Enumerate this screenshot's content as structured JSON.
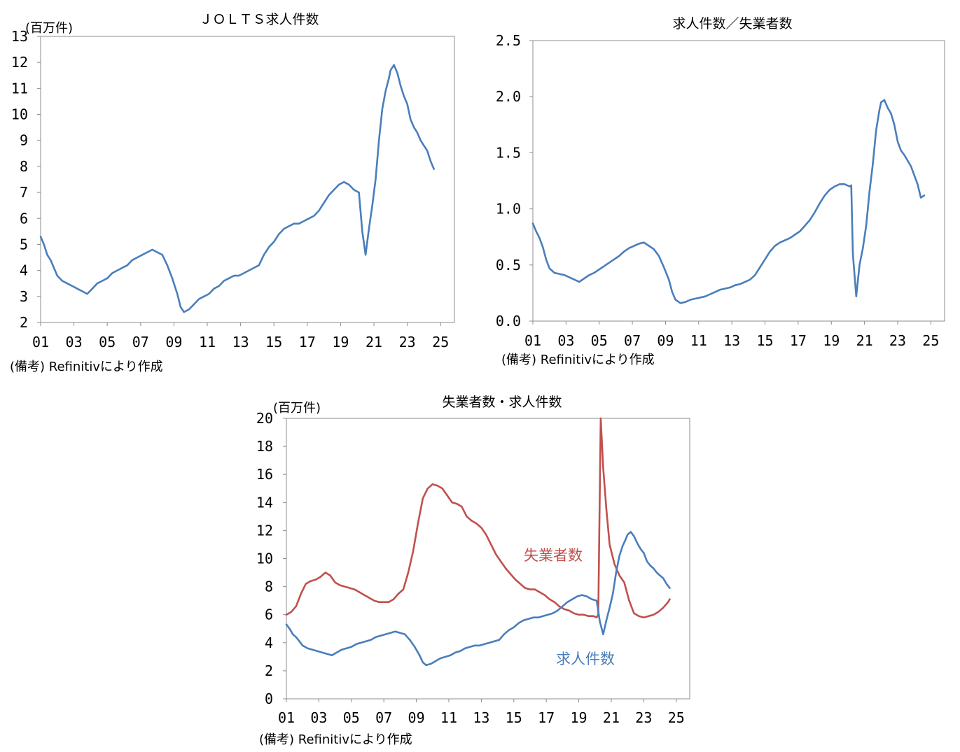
{
  "chart_data": [
    {
      "type": "line",
      "title": "ＪＯＬＴＳ求人件数",
      "unit_label": "(百万件)",
      "note": "(備考) Refinitivにより作成",
      "ylim": [
        2,
        13
      ],
      "y_ticks": [
        2,
        3,
        4,
        5,
        6,
        7,
        8,
        9,
        10,
        11,
        12,
        13
      ],
      "y_tick_labels": [
        "2",
        "3",
        "4",
        "5",
        "6",
        "7",
        "8",
        "9",
        "10",
        "11",
        "12",
        "13"
      ],
      "x_tick_labels": [
        "01",
        "03",
        "05",
        "07",
        "09",
        "11",
        "13",
        "15",
        "17",
        "19",
        "21",
        "23",
        "25"
      ],
      "xlim": [
        2001.0,
        2025.83
      ],
      "legend": "none",
      "grid": false,
      "series": [
        {
          "color": "#4a7ebb",
          "x": [
            2001.0,
            2001.2,
            2001.4,
            2001.6,
            2001.8,
            2002.0,
            2002.3,
            2002.6,
            2002.9,
            2003.2,
            2003.5,
            2003.8,
            2004.1,
            2004.4,
            2004.7,
            2005.0,
            2005.3,
            2005.6,
            2005.9,
            2006.2,
            2006.5,
            2006.8,
            2007.1,
            2007.4,
            2007.7,
            2008.0,
            2008.3,
            2008.6,
            2008.9,
            2009.2,
            2009.4,
            2009.6,
            2009.9,
            2010.2,
            2010.5,
            2010.8,
            2011.1,
            2011.4,
            2011.7,
            2012.0,
            2012.3,
            2012.6,
            2012.9,
            2013.2,
            2013.5,
            2013.8,
            2014.1,
            2014.4,
            2014.7,
            2015.0,
            2015.3,
            2015.6,
            2015.9,
            2016.2,
            2016.5,
            2016.8,
            2017.1,
            2017.4,
            2017.7,
            2018.0,
            2018.3,
            2018.6,
            2018.9,
            2019.2,
            2019.5,
            2019.8,
            2020.1,
            2020.3,
            2020.5,
            2020.7,
            2020.9,
            2021.1,
            2021.3,
            2021.5,
            2021.7,
            2021.9,
            2022.0,
            2022.2,
            2022.4,
            2022.6,
            2022.8,
            2023.0,
            2023.2,
            2023.4,
            2023.6,
            2023.8,
            2024.0,
            2024.2,
            2024.4,
            2024.6
          ],
          "y": [
            5.3,
            5.0,
            4.6,
            4.4,
            4.1,
            3.8,
            3.6,
            3.5,
            3.4,
            3.3,
            3.2,
            3.1,
            3.3,
            3.5,
            3.6,
            3.7,
            3.9,
            4.0,
            4.1,
            4.2,
            4.4,
            4.5,
            4.6,
            4.7,
            4.8,
            4.7,
            4.6,
            4.2,
            3.7,
            3.1,
            2.6,
            2.4,
            2.5,
            2.7,
            2.9,
            3.0,
            3.1,
            3.3,
            3.4,
            3.6,
            3.7,
            3.8,
            3.8,
            3.9,
            4.0,
            4.1,
            4.2,
            4.6,
            4.9,
            5.1,
            5.4,
            5.6,
            5.7,
            5.8,
            5.8,
            5.9,
            6.0,
            6.1,
            6.3,
            6.6,
            6.9,
            7.1,
            7.3,
            7.4,
            7.3,
            7.1,
            7.0,
            5.5,
            4.6,
            5.6,
            6.5,
            7.5,
            9.0,
            10.2,
            10.9,
            11.4,
            11.7,
            11.9,
            11.6,
            11.1,
            10.7,
            10.4,
            9.8,
            9.5,
            9.3,
            9.0,
            8.8,
            8.6,
            8.2,
            7.9
          ]
        }
      ]
    },
    {
      "type": "line",
      "title": "求人件数／失業者数",
      "note": "(備考) Refinitivにより作成",
      "ylim": [
        0.0,
        2.5
      ],
      "y_ticks": [
        0.0,
        0.5,
        1.0,
        1.5,
        2.0,
        2.5
      ],
      "y_tick_labels": [
        "0.0",
        "0.5",
        "1.0",
        "1.5",
        "2.0",
        "2.5"
      ],
      "x_tick_labels": [
        "01",
        "03",
        "05",
        "07",
        "09",
        "11",
        "13",
        "15",
        "17",
        "19",
        "21",
        "23",
        "25"
      ],
      "xlim": [
        2001.0,
        2025.83
      ],
      "legend": "none",
      "grid": false,
      "series": [
        {
          "color": "#4a7ebb",
          "x": [
            2001.0,
            2001.2,
            2001.4,
            2001.6,
            2001.8,
            2002.0,
            2002.3,
            2002.6,
            2002.9,
            2003.2,
            2003.5,
            2003.8,
            2004.1,
            2004.4,
            2004.7,
            2005.0,
            2005.3,
            2005.6,
            2005.9,
            2006.2,
            2006.5,
            2006.8,
            2007.1,
            2007.4,
            2007.7,
            2008.0,
            2008.3,
            2008.6,
            2008.9,
            2009.2,
            2009.4,
            2009.6,
            2009.9,
            2010.2,
            2010.5,
            2010.8,
            2011.1,
            2011.4,
            2011.7,
            2012.0,
            2012.3,
            2012.6,
            2012.9,
            2013.2,
            2013.5,
            2013.8,
            2014.1,
            2014.4,
            2014.7,
            2015.0,
            2015.3,
            2015.6,
            2015.9,
            2016.2,
            2016.5,
            2016.8,
            2017.1,
            2017.4,
            2017.7,
            2018.0,
            2018.3,
            2018.6,
            2018.9,
            2019.2,
            2019.5,
            2019.8,
            2020.1,
            2020.2,
            2020.3,
            2020.5,
            2020.7,
            2020.9,
            2021.1,
            2021.3,
            2021.5,
            2021.7,
            2021.9,
            2022.0,
            2022.2,
            2022.4,
            2022.6,
            2022.8,
            2023.0,
            2023.2,
            2023.4,
            2023.6,
            2023.8,
            2024.0,
            2024.2,
            2024.4,
            2024.6
          ],
          "y": [
            0.87,
            0.8,
            0.74,
            0.66,
            0.55,
            0.47,
            0.43,
            0.42,
            0.41,
            0.39,
            0.37,
            0.35,
            0.38,
            0.41,
            0.43,
            0.46,
            0.49,
            0.52,
            0.55,
            0.58,
            0.62,
            0.65,
            0.67,
            0.69,
            0.7,
            0.67,
            0.64,
            0.58,
            0.48,
            0.37,
            0.26,
            0.19,
            0.16,
            0.17,
            0.19,
            0.2,
            0.21,
            0.22,
            0.24,
            0.26,
            0.28,
            0.29,
            0.3,
            0.32,
            0.33,
            0.35,
            0.37,
            0.41,
            0.48,
            0.55,
            0.62,
            0.67,
            0.7,
            0.72,
            0.74,
            0.77,
            0.8,
            0.85,
            0.9,
            0.97,
            1.05,
            1.12,
            1.17,
            1.2,
            1.22,
            1.22,
            1.2,
            1.21,
            0.6,
            0.22,
            0.5,
            0.65,
            0.85,
            1.15,
            1.4,
            1.7,
            1.88,
            1.95,
            1.97,
            1.9,
            1.85,
            1.75,
            1.6,
            1.52,
            1.48,
            1.43,
            1.38,
            1.3,
            1.22,
            1.1,
            1.12
          ]
        }
      ]
    },
    {
      "type": "line",
      "title": "失業者数・求人件数",
      "unit_label": "(百万件)",
      "note": "(備考) Refinitivにより作成",
      "ylim": [
        0,
        20
      ],
      "y_ticks": [
        0,
        2,
        4,
        6,
        8,
        10,
        12,
        14,
        16,
        18,
        20
      ],
      "y_tick_labels": [
        "0",
        "2",
        "4",
        "6",
        "8",
        "10",
        "12",
        "14",
        "16",
        "18",
        "20"
      ],
      "x_tick_labels": [
        "01",
        "03",
        "05",
        "07",
        "09",
        "11",
        "13",
        "15",
        "17",
        "19",
        "21",
        "23",
        "25"
      ],
      "xlim": [
        2001.0,
        2025.83
      ],
      "legend": "inline labels",
      "grid": false,
      "series": [
        {
          "name": "失業者数",
          "color": "#c0504d",
          "x": [
            2001.0,
            2001.3,
            2001.6,
            2001.9,
            2002.2,
            2002.5,
            2002.8,
            2003.1,
            2003.4,
            2003.7,
            2004.0,
            2004.3,
            2004.6,
            2004.9,
            2005.2,
            2005.5,
            2005.8,
            2006.1,
            2006.4,
            2006.7,
            2007.0,
            2007.3,
            2007.6,
            2007.9,
            2008.2,
            2008.5,
            2008.8,
            2009.1,
            2009.4,
            2009.7,
            2010.0,
            2010.3,
            2010.6,
            2010.9,
            2011.2,
            2011.5,
            2011.8,
            2012.1,
            2012.4,
            2012.7,
            2013.0,
            2013.3,
            2013.6,
            2013.9,
            2014.2,
            2014.5,
            2014.8,
            2015.1,
            2015.4,
            2015.7,
            2016.0,
            2016.3,
            2016.6,
            2016.9,
            2017.2,
            2017.5,
            2017.8,
            2018.1,
            2018.4,
            2018.7,
            2019.0,
            2019.3,
            2019.6,
            2019.9,
            2020.1,
            2020.2,
            2020.35,
            2020.5,
            2020.7,
            2020.9,
            2021.2,
            2021.5,
            2021.8,
            2022.1,
            2022.4,
            2022.7,
            2023.0,
            2023.3,
            2023.6,
            2023.9,
            2024.2,
            2024.5,
            2024.6
          ],
          "y": [
            6.0,
            6.2,
            6.6,
            7.5,
            8.2,
            8.4,
            8.5,
            8.7,
            9.0,
            8.8,
            8.3,
            8.1,
            8.0,
            7.9,
            7.8,
            7.6,
            7.4,
            7.2,
            7.0,
            6.9,
            6.9,
            6.9,
            7.1,
            7.5,
            7.8,
            9.0,
            10.5,
            12.5,
            14.3,
            15.0,
            15.3,
            15.2,
            15.0,
            14.5,
            14.0,
            13.9,
            13.7,
            13.0,
            12.7,
            12.5,
            12.2,
            11.7,
            11.0,
            10.3,
            9.8,
            9.3,
            8.9,
            8.5,
            8.2,
            7.9,
            7.8,
            7.8,
            7.6,
            7.4,
            7.1,
            6.9,
            6.6,
            6.4,
            6.3,
            6.1,
            6.0,
            6.0,
            5.9,
            5.9,
            5.8,
            6.0,
            20.0,
            16.5,
            13.5,
            11.0,
            9.6,
            8.8,
            8.3,
            7.0,
            6.1,
            5.9,
            5.8,
            5.9,
            6.0,
            6.2,
            6.5,
            6.9,
            7.1
          ]
        },
        {
          "name": "求人件数",
          "color": "#4a7ebb",
          "x": [
            2001.0,
            2001.2,
            2001.4,
            2001.6,
            2001.8,
            2002.0,
            2002.3,
            2002.6,
            2002.9,
            2003.2,
            2003.5,
            2003.8,
            2004.1,
            2004.4,
            2004.7,
            2005.0,
            2005.3,
            2005.6,
            2005.9,
            2006.2,
            2006.5,
            2006.8,
            2007.1,
            2007.4,
            2007.7,
            2008.0,
            2008.3,
            2008.6,
            2008.9,
            2009.2,
            2009.4,
            2009.6,
            2009.9,
            2010.2,
            2010.5,
            2010.8,
            2011.1,
            2011.4,
            2011.7,
            2012.0,
            2012.3,
            2012.6,
            2012.9,
            2013.2,
            2013.5,
            2013.8,
            2014.1,
            2014.4,
            2014.7,
            2015.0,
            2015.3,
            2015.6,
            2015.9,
            2016.2,
            2016.5,
            2016.8,
            2017.1,
            2017.4,
            2017.7,
            2018.0,
            2018.3,
            2018.6,
            2018.9,
            2019.2,
            2019.5,
            2019.8,
            2020.1,
            2020.3,
            2020.5,
            2020.7,
            2020.9,
            2021.1,
            2021.3,
            2021.5,
            2021.7,
            2021.9,
            2022.0,
            2022.2,
            2022.4,
            2022.6,
            2022.8,
            2023.0,
            2023.2,
            2023.4,
            2023.6,
            2023.8,
            2024.0,
            2024.2,
            2024.4,
            2024.6
          ],
          "y": [
            5.3,
            5.0,
            4.6,
            4.4,
            4.1,
            3.8,
            3.6,
            3.5,
            3.4,
            3.3,
            3.2,
            3.1,
            3.3,
            3.5,
            3.6,
            3.7,
            3.9,
            4.0,
            4.1,
            4.2,
            4.4,
            4.5,
            4.6,
            4.7,
            4.8,
            4.7,
            4.6,
            4.2,
            3.7,
            3.1,
            2.6,
            2.4,
            2.5,
            2.7,
            2.9,
            3.0,
            3.1,
            3.3,
            3.4,
            3.6,
            3.7,
            3.8,
            3.8,
            3.9,
            4.0,
            4.1,
            4.2,
            4.6,
            4.9,
            5.1,
            5.4,
            5.6,
            5.7,
            5.8,
            5.8,
            5.9,
            6.0,
            6.1,
            6.3,
            6.6,
            6.9,
            7.1,
            7.3,
            7.4,
            7.3,
            7.1,
            7.0,
            5.5,
            4.6,
            5.6,
            6.5,
            7.5,
            9.0,
            10.2,
            10.9,
            11.4,
            11.7,
            11.9,
            11.6,
            11.1,
            10.7,
            10.4,
            9.8,
            9.5,
            9.3,
            9.0,
            8.8,
            8.6,
            8.2,
            7.9
          ]
        }
      ]
    }
  ]
}
